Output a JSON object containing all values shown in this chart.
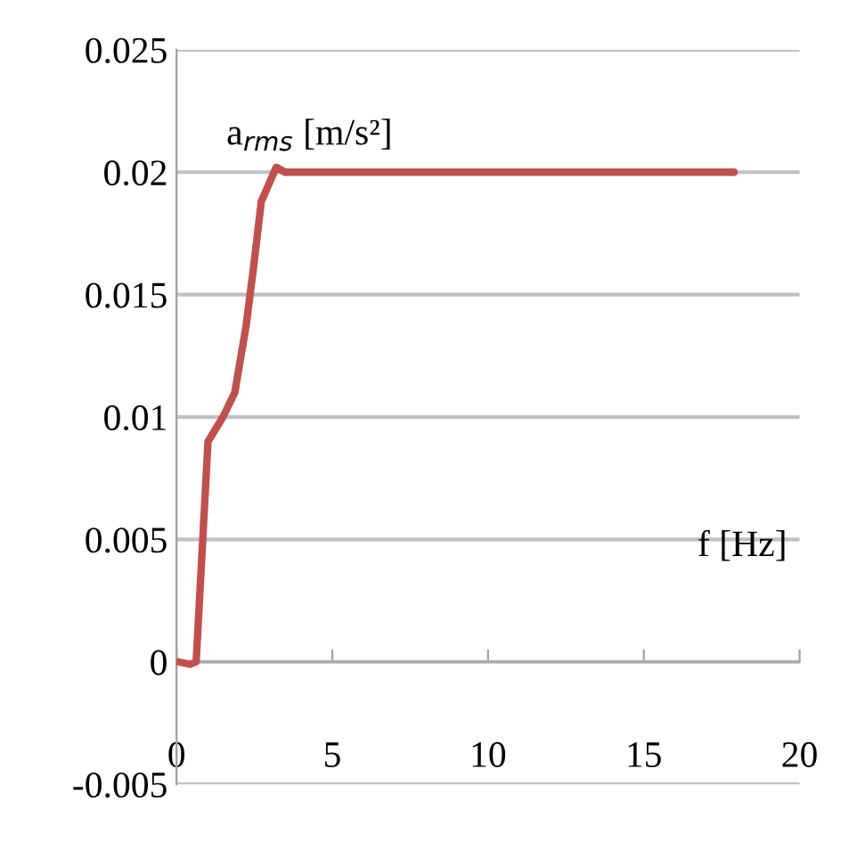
{
  "chart_data": {
    "type": "line",
    "xlabel": "f [Hz]",
    "ylabel": "a$_{rms}$ [m/s²]",
    "series": [
      {
        "color": "#c0504d",
        "x": [
          0.05,
          0.44,
          0.63,
          1.01,
          1.49,
          1.87,
          2.23,
          2.47,
          2.72,
          3.2,
          3.49,
          17.9
        ],
        "values": [
          0,
          -0.0001,
          0,
          0.009,
          0.01,
          0.011,
          0.0137,
          0.0161,
          0.0188,
          0.0202,
          0.02,
          0.02
        ]
      }
    ],
    "xlim": [
      0,
      20
    ],
    "xticks": [
      0,
      5,
      10,
      15,
      20
    ],
    "ylim": [
      -0.005,
      0.025
    ],
    "yticks": [
      -0.005,
      0,
      0.005,
      0.01,
      0.015,
      0.02,
      0.025
    ],
    "grid": "y",
    "line_style": "solid"
  }
}
